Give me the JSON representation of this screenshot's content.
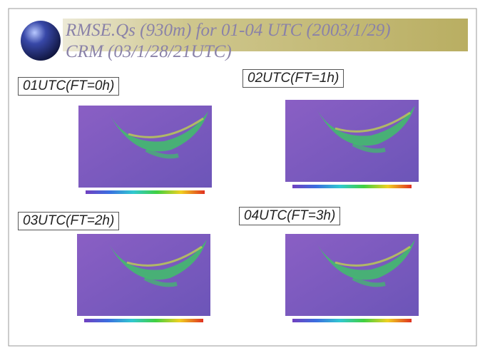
{
  "title": {
    "line1": "RMSE.Qs (930m)  for 01-04 UTC (2003/1/29)",
    "line2": "CRM (03/1/28/21UTC)"
  },
  "panels": [
    {
      "label": "01UTC(FT=0h)"
    },
    {
      "label": "02UTC(FT=1h)"
    },
    {
      "label": "03UTC(FT=2h)"
    },
    {
      "label": "04UTC(FT=3h)"
    }
  ]
}
